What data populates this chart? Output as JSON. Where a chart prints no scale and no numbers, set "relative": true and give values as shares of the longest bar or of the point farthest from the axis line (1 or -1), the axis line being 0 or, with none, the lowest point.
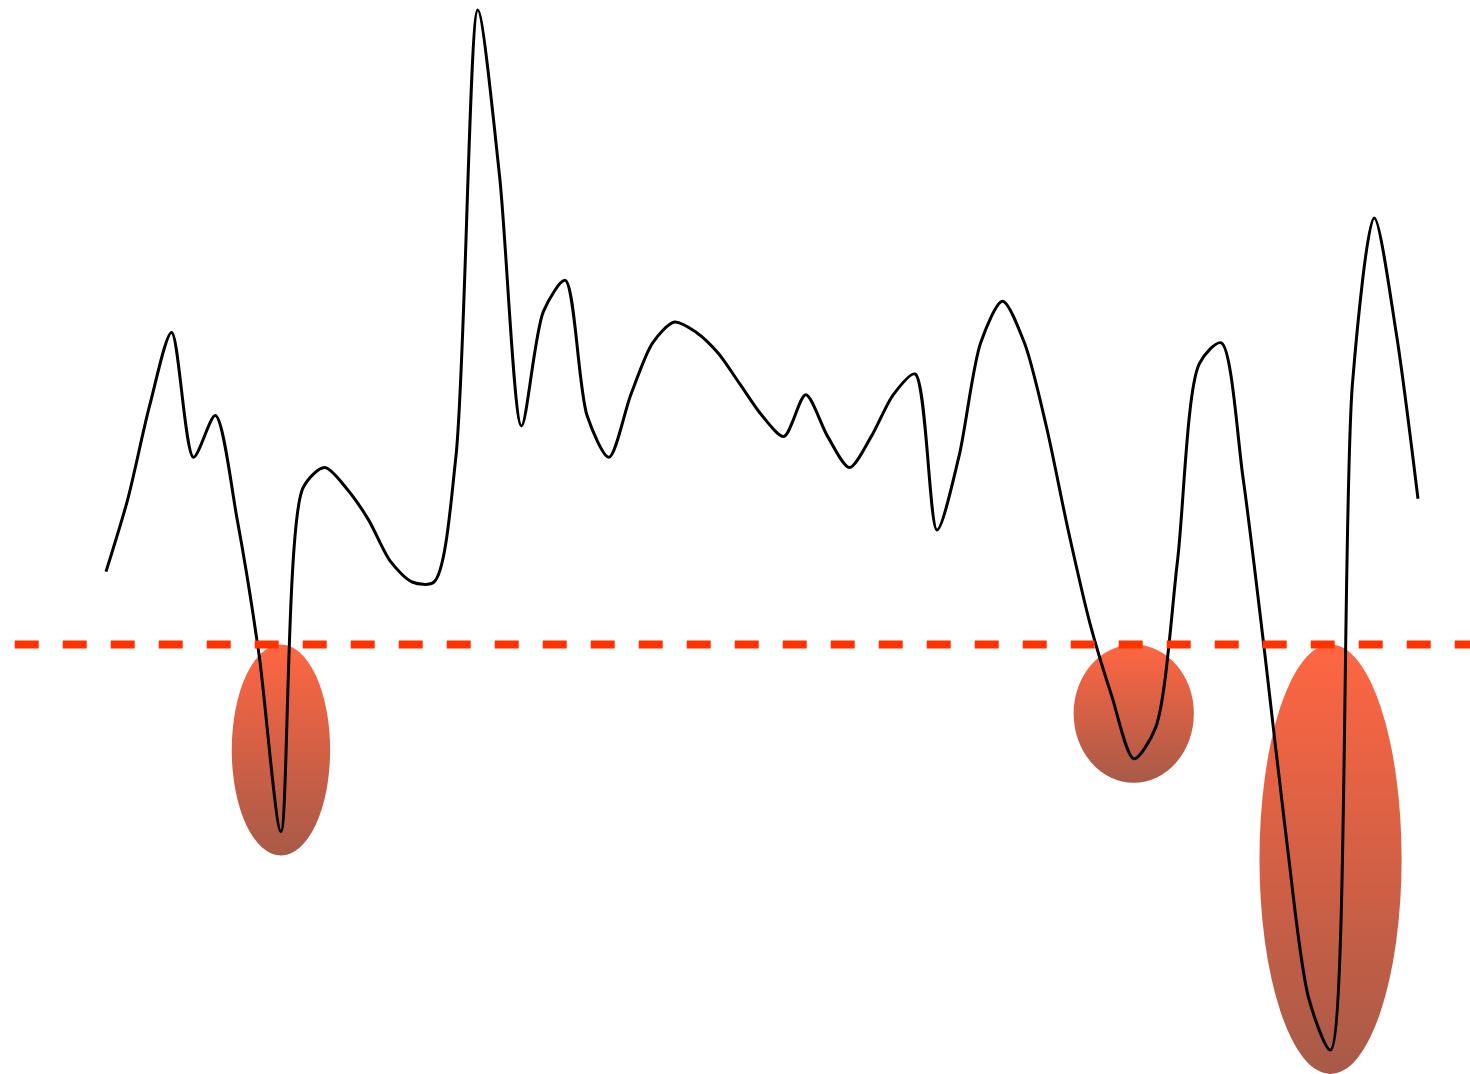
{
  "chart_data": {
    "type": "line",
    "relative": true,
    "categories": [
      null,
      null,
      null,
      null,
      null,
      null,
      null,
      null,
      null,
      null,
      null,
      null,
      null,
      null,
      null,
      null,
      null,
      null,
      null,
      null,
      null,
      null,
      null,
      null,
      null,
      null,
      null,
      null,
      null,
      null,
      null,
      null,
      null,
      null,
      null,
      null,
      null,
      null,
      null,
      null,
      null,
      null,
      null,
      null,
      null,
      null,
      null,
      null,
      null,
      null,
      null,
      null,
      null,
      null,
      null,
      null,
      null,
      null,
      null,
      null,
      null
    ],
    "series": [
      {
        "color": "#000000",
        "values": [
          0.46,
          0.53,
          0.62,
          0.69,
          0.57,
          0.61,
          0.51,
          0.38,
          0.21,
          0.54,
          0.56,
          0.54,
          0.51,
          0.47,
          0.45,
          0.45,
          0.57,
          1.0,
          0.84,
          0.6,
          0.71,
          0.74,
          0.61,
          0.57,
          0.63,
          0.68,
          0.7,
          0.69,
          0.67,
          0.64,
          0.61,
          0.59,
          0.63,
          0.59,
          0.56,
          0.59,
          0.63,
          0.65,
          0.5,
          0.57,
          0.68,
          0.72,
          0.68,
          0.6,
          0.5,
          0.41,
          0.34,
          0.28,
          0.31,
          0.47,
          0.66,
          0.68,
          0.55,
          0.38,
          0.2,
          0.05,
          0.0,
          0.64,
          0.8,
          0.69,
          0.53
        ]
      }
    ],
    "ref_lines": [
      {
        "axis": "y",
        "value": 0.39,
        "color": "#ff3300",
        "line_style": "dashed"
      }
    ]
  }
}
